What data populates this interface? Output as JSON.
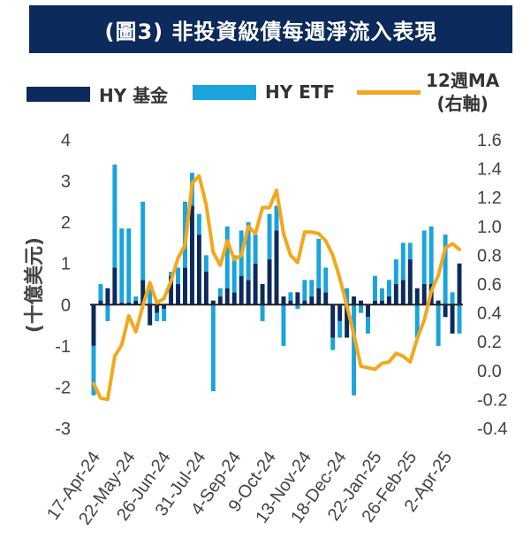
{
  "title": "(圖3) 非投資級債每週淨流入表現",
  "legend": [
    {
      "label": "HY 基金",
      "color": "#0c2a5b",
      "kind": "bar"
    },
    {
      "label": "HY ETF",
      "color": "#1aa3dd",
      "kind": "bar"
    },
    {
      "label_line1": "12週MA",
      "label_line2": "(右軸)",
      "color": "#f2a81d",
      "kind": "line"
    }
  ],
  "chart_data": {
    "type": "bar",
    "title": "(圖3) 非投資級債每週淨流入表現",
    "ylabel": "(十億美元)",
    "y_left_lim": [
      -3,
      4
    ],
    "y_left_ticks": [
      4,
      3,
      2,
      1,
      0,
      -1,
      -2,
      -3
    ],
    "y_right_lim": [
      -0.4,
      1.6
    ],
    "y_right_ticks": [
      "1.6",
      "1.4",
      "1.2",
      "1.0",
      "0.8",
      "0.6",
      "0.4",
      "0.2",
      "0.0",
      "-0.2",
      "-0.4"
    ],
    "x_tick_labels": [
      "17-Apr-24",
      "22-May-24",
      "26-Jun-24",
      "31-Jul-24",
      "4-Sep-24",
      "9-Oct-24",
      "13-Nov-24",
      "18-Dec-24",
      "22-Jan-25",
      "26-Feb-25",
      "2-Apr-25"
    ],
    "series": [
      {
        "name": "HY 基金",
        "type": "bar",
        "color": "#0c2a5b",
        "values": [
          -1.0,
          0.1,
          0.4,
          0.9,
          0.05,
          0.05,
          0.1,
          0.6,
          -0.5,
          -0.2,
          -0.1,
          0.7,
          0.5,
          0.9,
          2.4,
          1.7,
          0.8,
          0.1,
          0.2,
          0.4,
          0.3,
          0.7,
          0.6,
          1.0,
          0.5,
          1.1,
          1.8,
          0.2,
          0.1,
          0.3,
          0.1,
          0.2,
          0.4,
          0.3,
          -0.8,
          -0.4,
          -0.8,
          0.2,
          0.1,
          -0.3,
          0.1,
          0.1,
          0.2,
          0.5,
          0.6,
          1.1,
          0.4,
          0.5,
          0.5,
          0.1,
          -0.3,
          -0.7,
          1.0
        ]
      },
      {
        "name": "HY ETF",
        "type": "bar",
        "color": "#1aa3dd",
        "values": [
          -1.2,
          0.4,
          -0.4,
          2.5,
          1.8,
          1.8,
          0.1,
          1.9,
          0.5,
          -0.2,
          -0.3,
          0.1,
          0.4,
          1.6,
          0.8,
          0.5,
          0.4,
          -2.1,
          0.2,
          1.5,
          0.9,
          1.1,
          1.4,
          0.7,
          -0.4,
          1.1,
          0.6,
          -1.0,
          0.2,
          -0.1,
          0.5,
          0.4,
          1.2,
          0.6,
          -0.3,
          -0.4,
          0.4,
          -2.2,
          -0.2,
          -0.4,
          0.6,
          0.3,
          0.4,
          0.6,
          0.9,
          0.4,
          -0.8,
          1.3,
          1.4,
          -1.0,
          1.7,
          0.3,
          -0.7
        ]
      },
      {
        "name": "12週MA",
        "type": "line",
        "axis": "right",
        "color": "#f2a81d",
        "values": [
          -0.09,
          -0.19,
          -0.2,
          0.1,
          0.18,
          0.38,
          0.27,
          0.45,
          0.61,
          0.47,
          0.5,
          0.62,
          0.78,
          0.87,
          1.3,
          1.35,
          1.15,
          0.82,
          0.73,
          0.9,
          0.77,
          0.8,
          1.0,
          0.95,
          1.13,
          1.13,
          1.25,
          0.95,
          0.8,
          0.75,
          0.96,
          0.96,
          0.95,
          0.9,
          0.8,
          0.64,
          0.45,
          0.25,
          0.03,
          0.02,
          0.01,
          0.05,
          0.06,
          0.12,
          0.1,
          0.06,
          0.22,
          0.35,
          0.55,
          0.66,
          0.85,
          0.88,
          0.84
        ]
      }
    ]
  }
}
